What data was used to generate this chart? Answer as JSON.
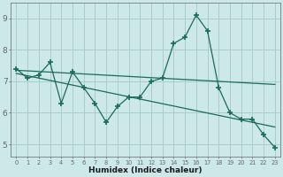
{
  "main_x": [
    0,
    1,
    2,
    3,
    4,
    5,
    6,
    7,
    8,
    9,
    10,
    11,
    12,
    13,
    14,
    15,
    16,
    17,
    18,
    19,
    20,
    21,
    22,
    23
  ],
  "main_y": [
    7.4,
    7.1,
    7.2,
    7.6,
    6.3,
    7.3,
    6.8,
    6.3,
    5.7,
    6.2,
    6.5,
    6.5,
    7.0,
    7.1,
    8.2,
    8.4,
    9.1,
    8.6,
    6.8,
    6.0,
    5.8,
    5.8,
    5.3,
    4.9
  ],
  "trend1_x": [
    0,
    23
  ],
  "trend1_y": [
    7.35,
    6.9
  ],
  "trend2_x": [
    0,
    23
  ],
  "trend2_y": [
    7.25,
    5.55
  ],
  "bg_color": "#cce8e8",
  "grid_color": "#aacccc",
  "line_color": "#1a6b5a",
  "xlabel": "Humidex (Indice chaleur)",
  "xticks": [
    0,
    1,
    2,
    3,
    4,
    5,
    6,
    7,
    8,
    9,
    10,
    11,
    12,
    13,
    14,
    15,
    16,
    17,
    18,
    19,
    20,
    21,
    22,
    23
  ],
  "yticks": [
    5,
    6,
    7,
    8,
    9
  ],
  "ylim": [
    4.6,
    9.5
  ],
  "xlim": [
    -0.5,
    23.5
  ]
}
